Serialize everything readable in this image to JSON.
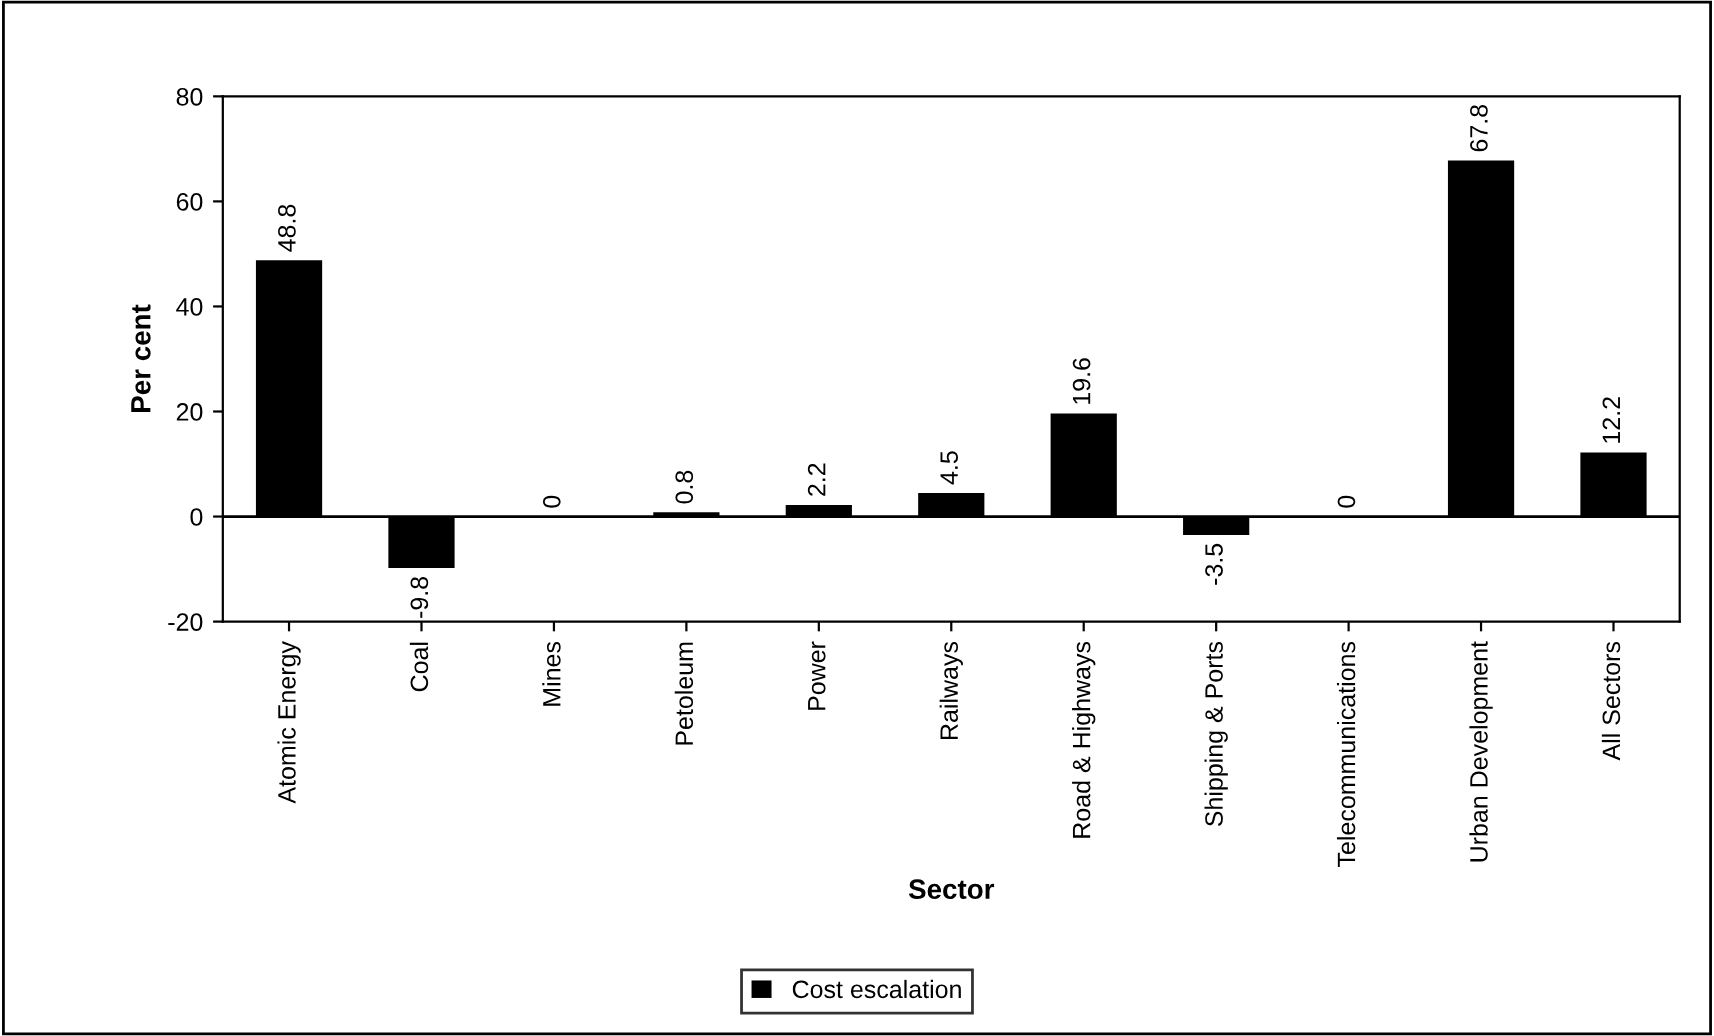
{
  "chart_data": {
    "type": "bar",
    "xlabel": "Sector",
    "ylabel": "Per cent",
    "categories": [
      "Atomic Energy",
      "Coal",
      "Mines",
      "Petoleum",
      "Power",
      "Railways",
      "Road & Highways",
      "Shipping & Ports",
      "Telecommunications",
      "Urban Development",
      "All Sectors"
    ],
    "series": [
      {
        "name": "Cost escalation",
        "color": "#000000",
        "values": [
          48.8,
          -9.8,
          0,
          0.8,
          2.2,
          4.5,
          19.6,
          -3.5,
          0,
          67.8,
          12.2
        ]
      }
    ],
    "ylim": [
      -20,
      80
    ],
    "yticks": [
      -20,
      0,
      20,
      40,
      60,
      80
    ],
    "legend": "bottom",
    "data_labels": true
  }
}
